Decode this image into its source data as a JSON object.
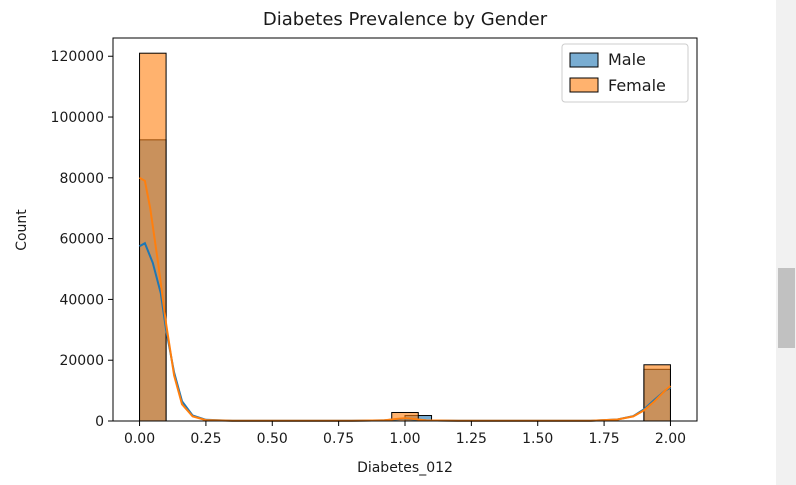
{
  "chart_data": {
    "type": "histogram",
    "title": "Diabetes Prevalence by Gender",
    "xlabel": "Diabetes_012",
    "ylabel": "Count",
    "xlim": [
      -0.1,
      2.1
    ],
    "ylim": [
      0,
      126000
    ],
    "x_ticks": [
      0.0,
      0.25,
      0.5,
      0.75,
      1.0,
      1.25,
      1.5,
      1.75,
      2.0
    ],
    "x_tick_labels": [
      "0.00",
      "0.25",
      "0.50",
      "0.75",
      "1.00",
      "1.25",
      "1.50",
      "1.75",
      "2.00"
    ],
    "y_ticks": [
      0,
      20000,
      40000,
      60000,
      80000,
      100000,
      120000
    ],
    "y_tick_labels": [
      "0",
      "20000",
      "40000",
      "60000",
      "80000",
      "100000",
      "120000"
    ],
    "bin_width": 0.1,
    "legend_position": "top-right",
    "series": [
      {
        "name": "Male",
        "color": "#1f77b4",
        "bins": [
          {
            "start": 0.0,
            "end": 0.1,
            "count": 92500
          },
          {
            "start": 1.0,
            "end": 1.1,
            "count": 1800
          },
          {
            "start": 1.9,
            "end": 2.0,
            "count": 17000
          }
        ],
        "kde": [
          [
            0.0,
            57500
          ],
          [
            0.02,
            58500
          ],
          [
            0.05,
            52000
          ],
          [
            0.08,
            42000
          ],
          [
            0.1,
            30000
          ],
          [
            0.13,
            16000
          ],
          [
            0.16,
            6500
          ],
          [
            0.2,
            1800
          ],
          [
            0.25,
            400
          ],
          [
            0.35,
            100
          ],
          [
            0.8,
            80
          ],
          [
            0.92,
            200
          ],
          [
            0.97,
            600
          ],
          [
            1.0,
            800
          ],
          [
            1.03,
            600
          ],
          [
            1.08,
            200
          ],
          [
            1.2,
            80
          ],
          [
            1.7,
            100
          ],
          [
            1.8,
            500
          ],
          [
            1.86,
            1600
          ],
          [
            1.9,
            3800
          ],
          [
            1.94,
            7000
          ],
          [
            1.98,
            10000
          ],
          [
            2.0,
            11000
          ]
        ]
      },
      {
        "name": "Female",
        "color": "#ff7f0e",
        "bins": [
          {
            "start": 0.0,
            "end": 0.1,
            "count": 121000
          },
          {
            "start": 0.95,
            "end": 1.05,
            "count": 2800
          },
          {
            "start": 1.9,
            "end": 2.0,
            "count": 18500
          }
        ],
        "kde": [
          [
            0.0,
            80000
          ],
          [
            0.02,
            79000
          ],
          [
            0.04,
            70000
          ],
          [
            0.07,
            52000
          ],
          [
            0.1,
            32000
          ],
          [
            0.13,
            15000
          ],
          [
            0.16,
            5500
          ],
          [
            0.2,
            1500
          ],
          [
            0.25,
            300
          ],
          [
            0.35,
            100
          ],
          [
            0.8,
            80
          ],
          [
            0.92,
            200
          ],
          [
            0.97,
            700
          ],
          [
            1.0,
            900
          ],
          [
            1.03,
            700
          ],
          [
            1.08,
            200
          ],
          [
            1.2,
            80
          ],
          [
            1.7,
            100
          ],
          [
            1.8,
            500
          ],
          [
            1.86,
            1500
          ],
          [
            1.9,
            3500
          ],
          [
            1.94,
            6500
          ],
          [
            1.98,
            10000
          ],
          [
            2.0,
            11500
          ]
        ]
      }
    ]
  }
}
